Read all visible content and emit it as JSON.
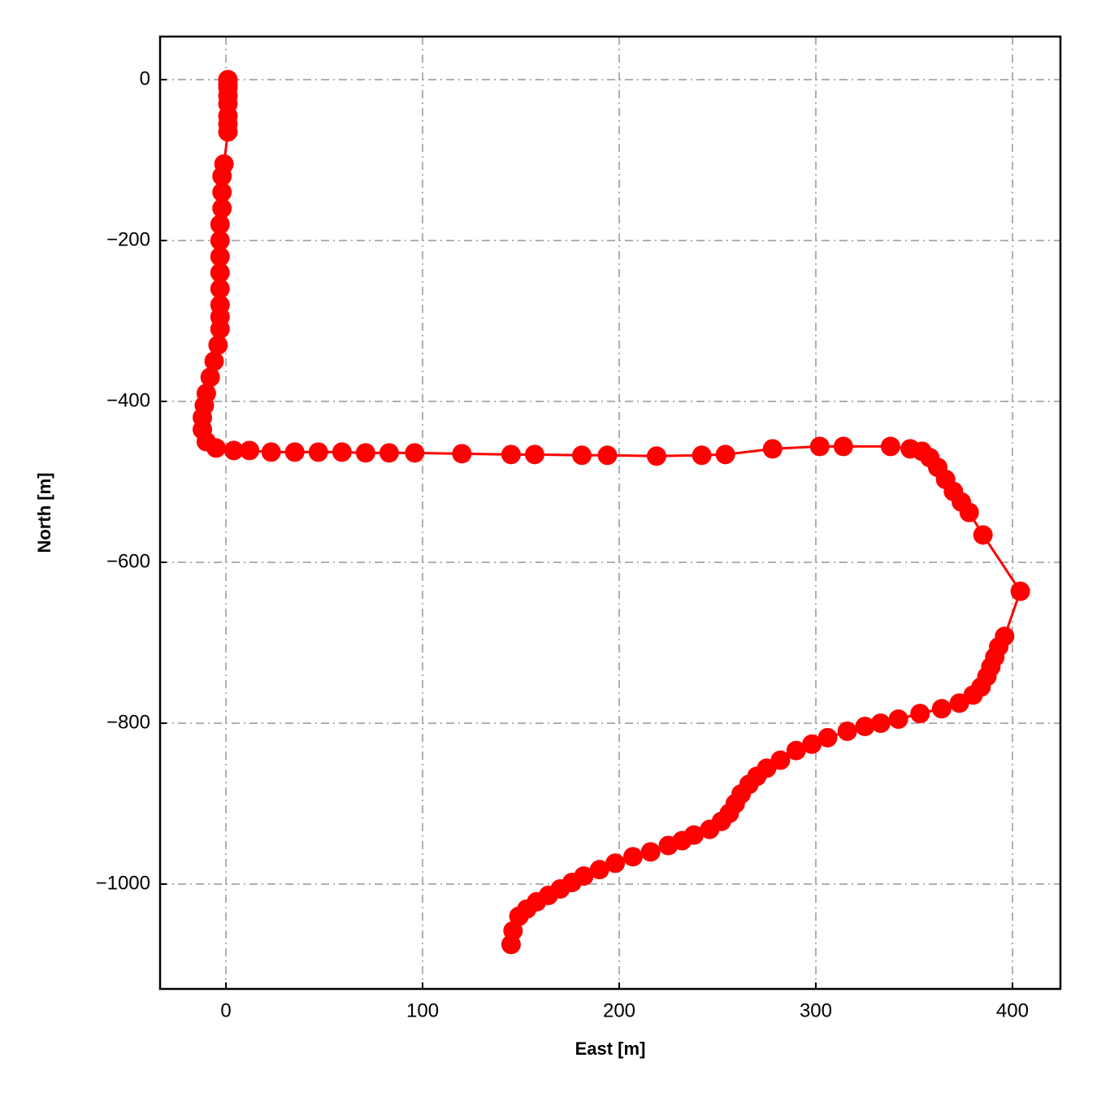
{
  "chart_data": {
    "type": "line",
    "marker": true,
    "color": "#ff0000",
    "grid": true,
    "xlabel": "East [m]",
    "ylabel": "North [m]",
    "xlim": [
      -33.5,
      424.4
    ],
    "ylim": [
      -1130.3,
      53.5
    ],
    "xticks": [
      0,
      100,
      200,
      300,
      400
    ],
    "yticks": [
      0,
      {
        "value": -200,
        "label": "−200"
      },
      {
        "value": -400,
        "label": "−400"
      },
      {
        "value": -600,
        "label": "−600"
      },
      {
        "value": -800,
        "label": "−800"
      },
      {
        "value": -1000,
        "label": "−1000"
      }
    ],
    "x": [
      1,
      1,
      1,
      1,
      1,
      1,
      1,
      1,
      -1,
      -2,
      -2,
      -2,
      -3,
      -3,
      -3,
      -3,
      -3,
      -3,
      -3,
      -3,
      -4,
      -6,
      -8,
      -10,
      -11,
      -12,
      -12,
      -10,
      -5,
      4,
      12,
      23,
      35,
      47,
      59,
      71,
      83,
      96,
      120,
      145,
      157,
      181,
      194,
      219,
      242,
      254,
      278,
      302,
      314,
      338,
      348,
      354,
      358,
      362,
      366,
      370,
      374,
      378,
      385,
      404,
      396,
      393,
      391,
      389,
      387,
      384,
      380,
      373,
      364,
      353,
      342,
      333,
      325,
      316,
      306,
      298,
      290,
      282,
      275,
      270,
      266,
      262,
      259,
      256,
      252,
      246,
      238,
      232,
      225,
      216,
      207,
      198,
      190,
      182,
      176,
      170,
      164,
      158,
      153,
      149,
      146,
      145
    ],
    "values": [
      0,
      -5,
      -10,
      -20,
      -30,
      -45,
      -55,
      -65,
      -105,
      -120,
      -140,
      -160,
      -180,
      -200,
      -220,
      -240,
      -260,
      -280,
      -295,
      -310,
      -330,
      -350,
      -370,
      -390,
      -405,
      -420,
      -435,
      -450,
      -458,
      -461,
      -461,
      -463,
      -463,
      -463,
      -463,
      -464,
      -464,
      -464,
      -465,
      -466,
      -466,
      -467,
      -467,
      -468,
      -467,
      -466,
      -459,
      -456,
      -456,
      -456,
      -459,
      -462,
      -470,
      -482,
      -497,
      -512,
      -525,
      -538,
      -566,
      -636,
      -692,
      -705,
      -718,
      -730,
      -742,
      -755,
      -765,
      -775,
      -782,
      -788,
      -795,
      -800,
      -804,
      -810,
      -818,
      -826,
      -834,
      -846,
      -856,
      -866,
      -876,
      -888,
      -900,
      -912,
      -922,
      -932,
      -939,
      -946,
      -952,
      -960,
      -966,
      -974,
      -982,
      -990,
      -998,
      -1006,
      -1014,
      -1022,
      -1031,
      -1040,
      -1058,
      -1075
    ]
  }
}
